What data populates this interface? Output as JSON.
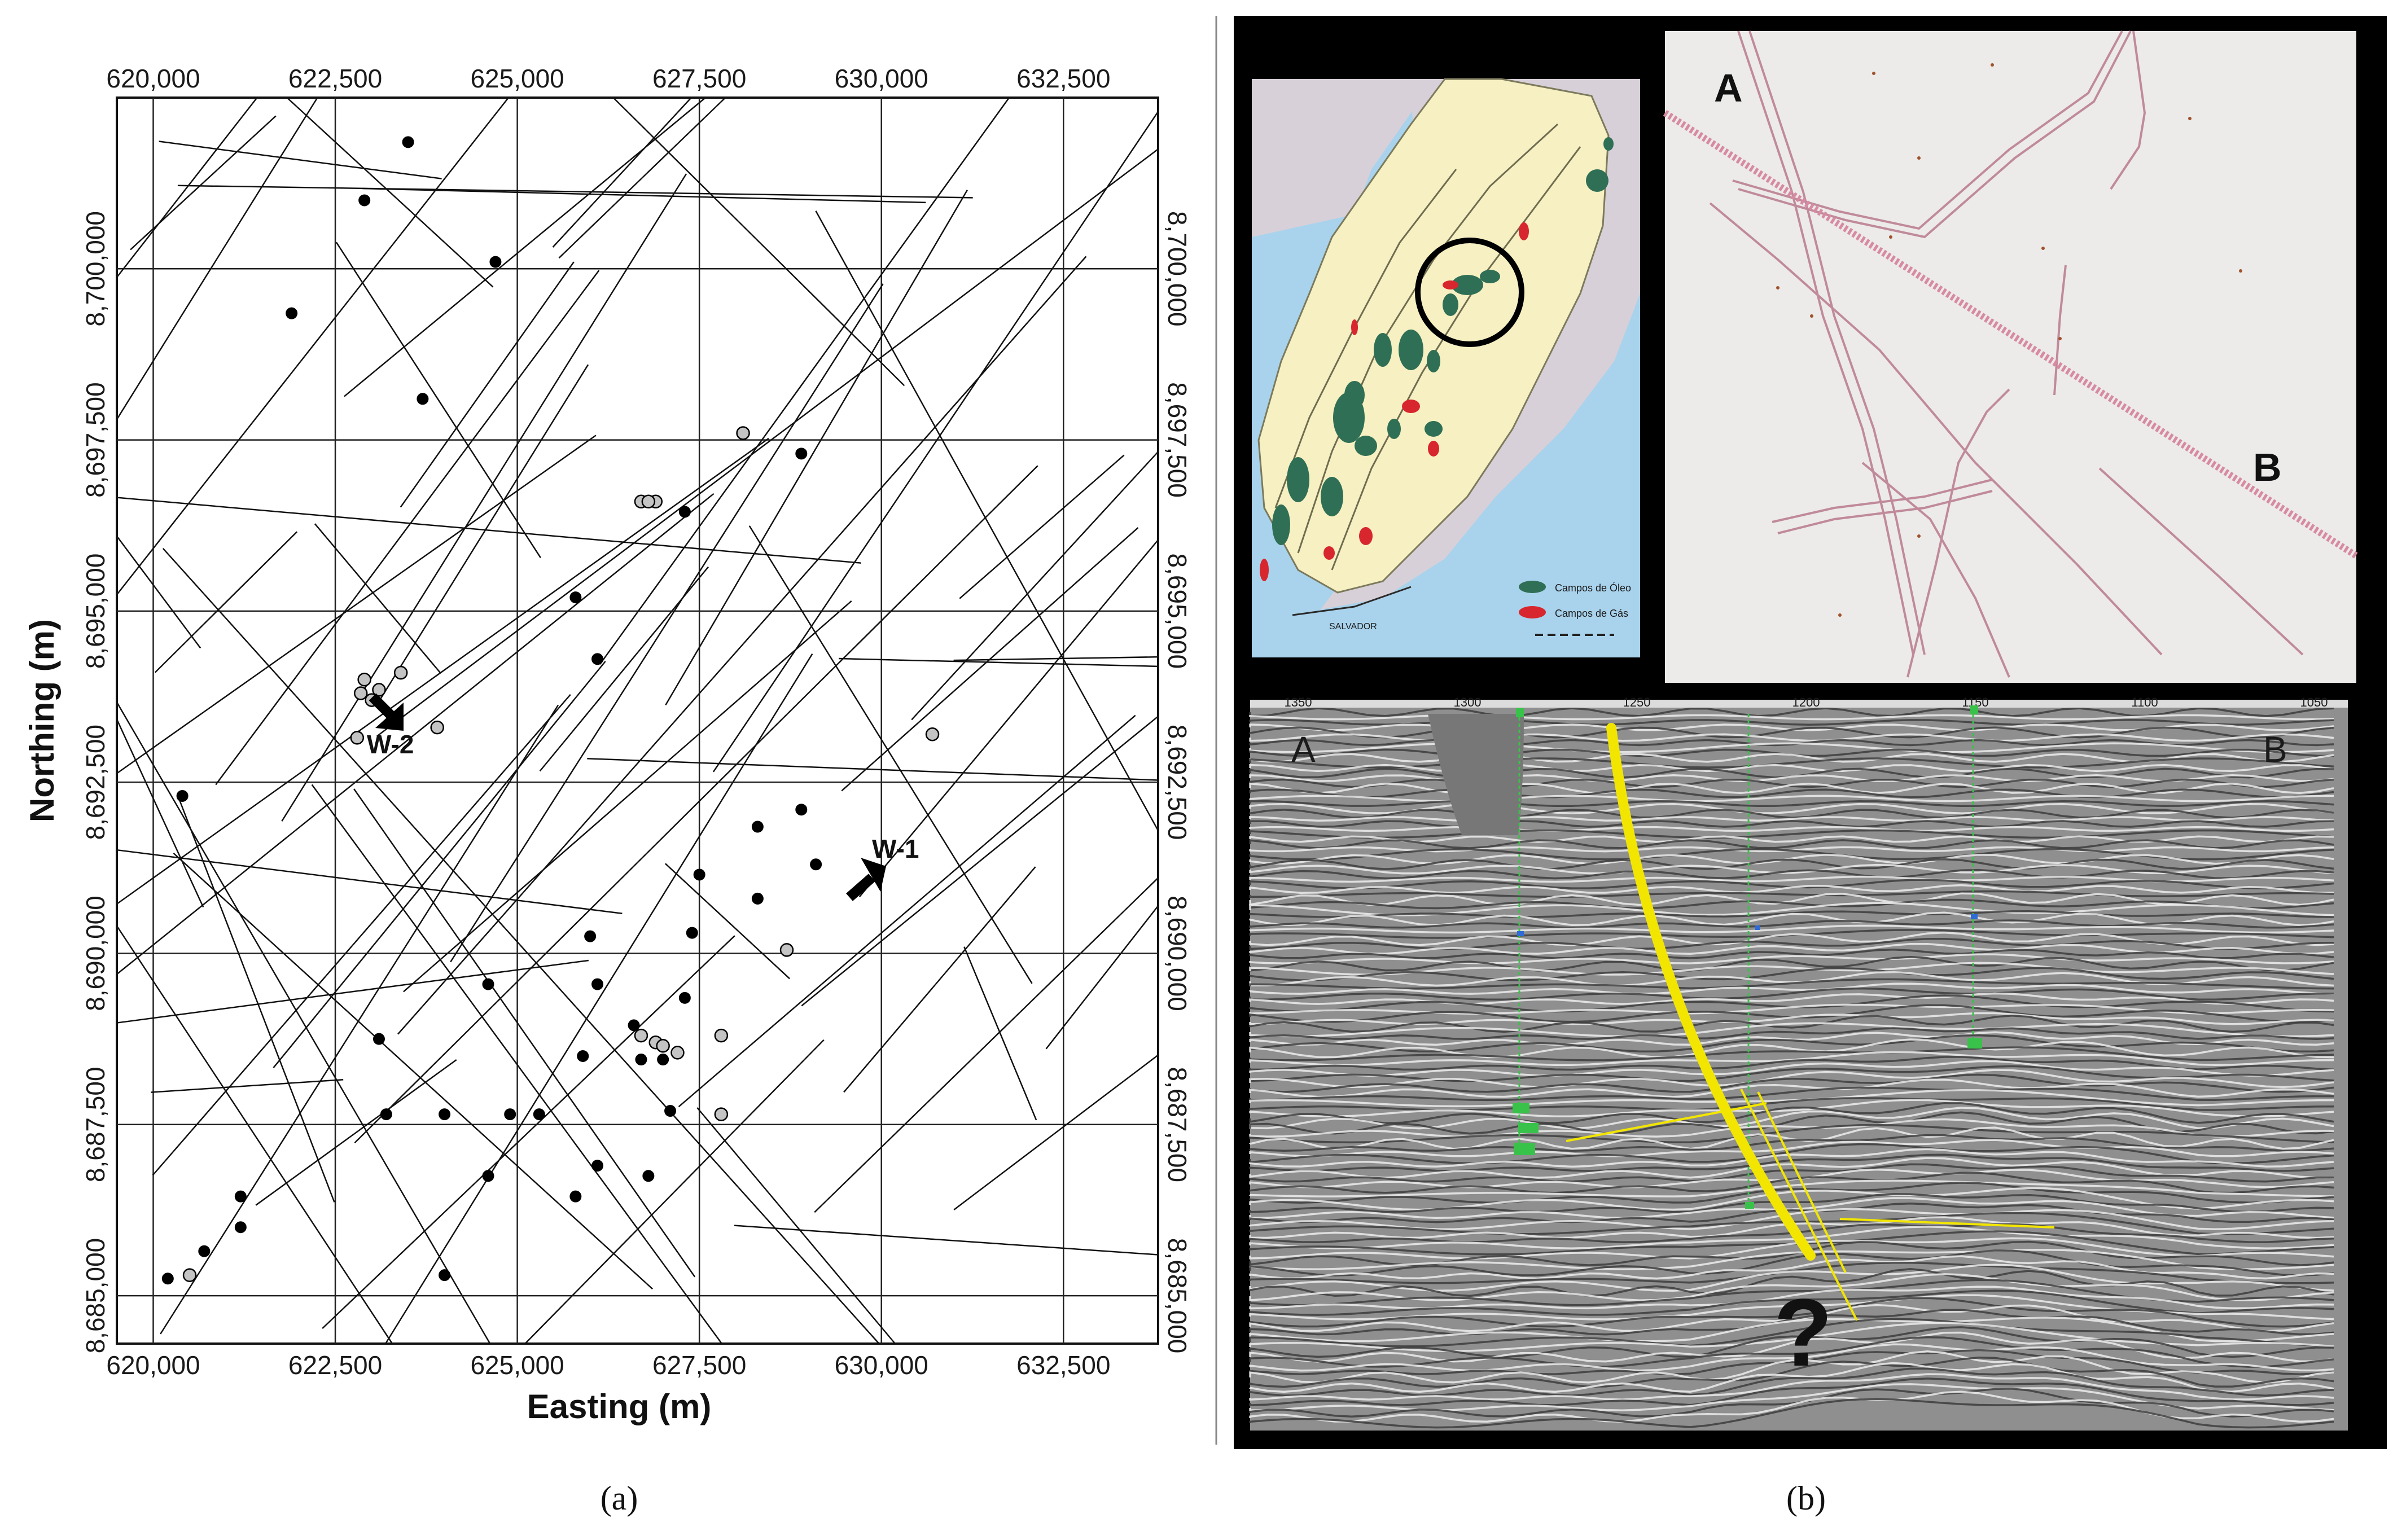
{
  "panel_a": {
    "caption": "(a)",
    "xlabel": "Easting (m)",
    "ylabel": "Northing (m)",
    "x_ticks": [
      "620,000",
      "622,500",
      "625,000",
      "627,500",
      "630,000",
      "632,500"
    ],
    "y_ticks": [
      "8,685,000",
      "8,687,500",
      "8,690,000",
      "8,692,500",
      "8,695,000",
      "8,697,500",
      "8,700,000"
    ],
    "well_labels": {
      "w1": "W-1",
      "w2": "W-2"
    }
  },
  "panel_b": {
    "caption": "(b)",
    "basemap": {
      "label_a": "A",
      "label_b": "B"
    },
    "inset_map": {
      "legend_oil": "Campos de Óleo",
      "legend_gas": "Campos de Gás",
      "city": "SALVADOR"
    },
    "seismic": {
      "label_a": "A",
      "label_b": "B",
      "question": "?",
      "top_ticks": [
        "1350",
        "1300",
        "1250",
        "1200",
        "1150",
        "1100",
        "1050"
      ]
    }
  },
  "colors": {
    "yellow_fault": "#f2e600",
    "well_green": "#39c24a",
    "oil_field": "#2f6f55",
    "gas_field": "#d8262e",
    "land": "#f7f0c2",
    "sea": "#a9d3ec",
    "basemap_line": "#c08a9a"
  },
  "chart_data": {
    "type": "scatter",
    "xlabel": "Easting (m)",
    "ylabel": "Northing (m)",
    "xlim": [
      619500,
      633800
    ],
    "ylim": [
      8684300,
      8702500
    ],
    "grid": true,
    "tick_x": [
      620000,
      622500,
      625000,
      627500,
      630000,
      632500
    ],
    "tick_y": [
      8685000,
      8687500,
      8690000,
      8692500,
      8695000,
      8697500,
      8700000
    ],
    "series": [
      {
        "marker": "black-filled",
        "points": [
          [
            623500,
            8701850
          ],
          [
            622900,
            8701000
          ],
          [
            624700,
            8700100
          ],
          [
            621900,
            8699350
          ],
          [
            623700,
            8698100
          ],
          [
            628900,
            8697300
          ],
          [
            627300,
            8696450
          ],
          [
            625800,
            8695200
          ],
          [
            626100,
            8694300
          ],
          [
            620400,
            8692300
          ],
          [
            628900,
            8692100
          ],
          [
            628300,
            8691850
          ],
          [
            629100,
            8691300
          ],
          [
            627500,
            8691150
          ],
          [
            628300,
            8690800
          ],
          [
            627400,
            8690300
          ],
          [
            626000,
            8690250
          ],
          [
            624600,
            8689550
          ],
          [
            626100,
            8689550
          ],
          [
            627300,
            8689350
          ],
          [
            626600,
            8688950
          ],
          [
            623100,
            8688750
          ],
          [
            625900,
            8688500
          ],
          [
            626700,
            8688450
          ],
          [
            627000,
            8688450
          ],
          [
            623200,
            8687650
          ],
          [
            624000,
            8687650
          ],
          [
            624900,
            8687650
          ],
          [
            625300,
            8687650
          ],
          [
            627100,
            8687700
          ],
          [
            626100,
            8686900
          ],
          [
            624600,
            8686750
          ],
          [
            626800,
            8686750
          ],
          [
            625800,
            8686450
          ],
          [
            621200,
            8686450
          ],
          [
            621200,
            8686000
          ],
          [
            620700,
            8685650
          ],
          [
            620200,
            8685250
          ],
          [
            624000,
            8685300
          ]
        ]
      },
      {
        "marker": "grey-filled",
        "points": [
          [
            628100,
            8697600
          ],
          [
            626700,
            8696600
          ],
          [
            626900,
            8696600
          ],
          [
            626800,
            8696600
          ],
          [
            622900,
            8694000
          ],
          [
            623100,
            8693850
          ],
          [
            622850,
            8693800
          ],
          [
            623000,
            8693700
          ],
          [
            623400,
            8694100
          ],
          [
            623900,
            8693300
          ],
          [
            622800,
            8693150
          ],
          [
            630700,
            8693200
          ],
          [
            628700,
            8690050
          ],
          [
            626700,
            8688800
          ],
          [
            626900,
            8688700
          ],
          [
            627000,
            8688650
          ],
          [
            627200,
            8688550
          ],
          [
            627800,
            8688800
          ],
          [
            627800,
            8687650
          ],
          [
            620500,
            8685300
          ]
        ]
      }
    ],
    "annotations": [
      {
        "label": "W-1",
        "x": 628950,
        "y": 8690600
      },
      {
        "label": "W-2",
        "x": 623350,
        "y": 8692450
      }
    ]
  }
}
